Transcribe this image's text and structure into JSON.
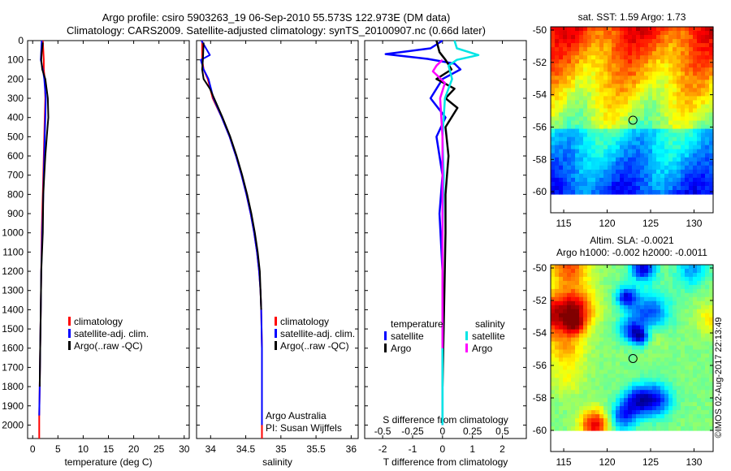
{
  "title_line1": "Argo profile: csiro 5903263_19 06-Sep-2010 55.573S 122.973E (DM data)",
  "title_line2": "Climatology: CARS2009. Satellite-adjusted climatology: synTS_20100907.nc (0.66d later)",
  "colors": {
    "climatology": "#ff0000",
    "satellite": "#0000ff",
    "argo": "#000000",
    "sal_satellite": "#00e5e5",
    "sal_argo": "#ff00ff"
  },
  "depth_ticks": [
    0,
    100,
    200,
    300,
    400,
    500,
    600,
    700,
    800,
    900,
    1000,
    1100,
    1200,
    1300,
    1400,
    1500,
    1600,
    1700,
    1800,
    1900,
    2000
  ],
  "chart_data": [
    {
      "type": "line",
      "xlabel": "temperature (deg C)",
      "xlim": [
        -1,
        31
      ],
      "ylim": [
        2070,
        0
      ],
      "xticks": [
        0,
        5,
        10,
        15,
        20,
        25,
        30
      ],
      "legend_placement": "lower-left",
      "legend": [
        "climatology",
        "satellite-adj. clim.",
        "Argo(..raw -QC)"
      ],
      "series": [
        {
          "name": "climatology",
          "color": "#ff0000",
          "x": [
            2.0,
            2.1,
            2.2,
            2.2,
            2.4,
            2.5,
            2.4,
            2.3,
            2.2,
            2.1,
            2.0,
            1.9,
            1.8,
            1.7,
            1.6,
            1.5,
            1.4,
            1.3,
            1.3
          ],
          "y": [
            0,
            50,
            100,
            150,
            200,
            300,
            400,
            500,
            600,
            700,
            800,
            900,
            1000,
            1200,
            1400,
            1600,
            1800,
            1950,
            2070
          ]
        },
        {
          "name": "satellite-adj. clim.",
          "color": "#0000ff",
          "x": [
            1.8,
            1.7,
            1.6,
            2.0,
            2.3,
            2.6,
            2.5,
            2.4,
            2.3,
            2.2,
            2.1,
            2.0,
            1.9,
            1.7,
            1.6,
            1.5,
            1.4,
            1.3
          ],
          "y": [
            0,
            50,
            100,
            150,
            200,
            300,
            400,
            500,
            600,
            700,
            800,
            900,
            1000,
            1200,
            1400,
            1600,
            1800,
            1950
          ]
        },
        {
          "name": "Argo(..raw -QC)",
          "color": "#000000",
          "x": [
            2.0,
            1.8,
            1.7,
            1.9,
            2.5,
            3.0,
            3.1,
            2.8,
            2.5,
            2.3,
            2.1,
            2.0,
            1.7,
            1.6,
            1.5,
            1.4
          ],
          "y": [
            10,
            60,
            100,
            150,
            200,
            300,
            400,
            500,
            600,
            700,
            800,
            1000,
            1200,
            1400,
            1600,
            1800
          ]
        }
      ]
    },
    {
      "type": "line",
      "xlabel": "salinity",
      "xlim": [
        33.8,
        36.1
      ],
      "ylim": [
        2070,
        0
      ],
      "xticks": [
        34,
        34.5,
        35,
        35.5,
        36
      ],
      "legend_placement": "lower-right",
      "legend": [
        "climatology",
        "satellite-adj. clim.",
        "Argo(..raw -QC)"
      ],
      "annotation": [
        "Argo Australia",
        "PI: Susan Wijffels"
      ],
      "series": [
        {
          "name": "climatology",
          "color": "#ff0000",
          "x": [
            33.88,
            33.88,
            33.9,
            33.96,
            34.03,
            34.16,
            34.27,
            34.36,
            34.44,
            34.51,
            34.57,
            34.62,
            34.66,
            34.69,
            34.71,
            34.72,
            34.73,
            34.73
          ],
          "y": [
            0,
            100,
            150,
            200,
            300,
            400,
            500,
            600,
            700,
            800,
            900,
            1000,
            1100,
            1200,
            1300,
            1400,
            1600,
            2070
          ]
        },
        {
          "name": "satellite-adj. clim.",
          "color": "#0000ff",
          "x": [
            33.87,
            33.99,
            33.86,
            33.9,
            33.97,
            34.04,
            34.16,
            34.27,
            34.36,
            34.44,
            34.51,
            34.57,
            34.62,
            34.66,
            34.69,
            34.71,
            34.72,
            34.73,
            34.73
          ],
          "y": [
            0,
            75,
            100,
            150,
            200,
            300,
            400,
            500,
            600,
            700,
            800,
            900,
            1000,
            1100,
            1200,
            1300,
            1400,
            1600,
            2000
          ]
        },
        {
          "name": "Argo(..raw -QC)",
          "color": "#000000",
          "x": [
            33.9,
            33.89,
            33.88,
            33.9,
            33.99,
            34.05,
            34.17,
            34.28,
            34.37,
            34.45,
            34.52,
            34.58,
            34.63,
            34.67,
            34.7,
            34.72
          ],
          "y": [
            10,
            100,
            150,
            200,
            250,
            300,
            400,
            500,
            600,
            700,
            800,
            900,
            1000,
            1100,
            1200,
            1400
          ]
        }
      ]
    },
    {
      "type": "line",
      "xlabel": "T difference from climatology",
      "x2label": "S difference from climatology",
      "xlim": [
        -2.6,
        2.8
      ],
      "x2lim": [
        -0.65,
        0.7
      ],
      "ylim": [
        2070,
        0
      ],
      "xticks": [
        -2,
        -1,
        0,
        1,
        2
      ],
      "x2ticks": [
        -0.5,
        -0.25,
        0,
        0.25,
        0.5
      ],
      "legend_placement": "middle",
      "legend_titles": [
        "temperature",
        "salinity"
      ],
      "series": [
        {
          "name": "satellite",
          "group": "temperature",
          "color": "#0000ff",
          "axis": "T",
          "x": [
            0,
            -0.4,
            -1.9,
            -0.5,
            0.4,
            0.6,
            0.0,
            -0.4,
            0.1,
            -0.2,
            -0.1,
            0.0,
            -0.1,
            0.0,
            0.0,
            0.0
          ],
          "y": [
            0,
            40,
            70,
            95,
            120,
            150,
            200,
            300,
            400,
            500,
            600,
            700,
            900,
            1200,
            1600,
            2000
          ]
        },
        {
          "name": "Argo",
          "group": "temperature",
          "color": "#000000",
          "axis": "T",
          "x": [
            -0.2,
            -0.1,
            0.1,
            0.3,
            -0.2,
            0.4,
            0.1,
            0.5,
            0.1,
            0.2,
            0.1,
            0.1,
            0.05,
            0.0
          ],
          "y": [
            0,
            60,
            100,
            150,
            200,
            250,
            300,
            350,
            450,
            600,
            800,
            1000,
            1400,
            1800
          ]
        },
        {
          "name": "satellite",
          "group": "salinity",
          "color": "#00e5e5",
          "axis": "S",
          "x": [
            0.1,
            0.12,
            0.3,
            0.12,
            0.05,
            0.08,
            0.02,
            0.0,
            0.01,
            0.0,
            0.0,
            0.0
          ],
          "y": [
            0,
            40,
            75,
            100,
            130,
            200,
            300,
            500,
            700,
            1000,
            1500,
            2000
          ]
        },
        {
          "name": "Argo",
          "group": "salinity",
          "color": "#ff00ff",
          "axis": "S",
          "x": [
            0.0,
            -0.05,
            -0.08,
            -0.03,
            0.02,
            -0.02,
            0.0,
            0.0,
            0.0,
            0.0
          ],
          "y": [
            100,
            130,
            160,
            190,
            220,
            300,
            500,
            800,
            1200,
            1600
          ]
        }
      ]
    },
    {
      "type": "heatmap",
      "title": "sat. SST: 1.59 Argo: 1.73",
      "xlim": [
        113.5,
        132.2
      ],
      "ylim": [
        -61.3,
        -49.8
      ],
      "xticks": [
        115,
        120,
        125,
        130
      ],
      "yticks": [
        -50,
        -52,
        -54,
        -56,
        -58,
        -60
      ],
      "profile_marker": {
        "lon": 122.973,
        "lat": -55.573
      }
    },
    {
      "type": "heatmap",
      "title_line1": "Altim. SLA: -0.0021",
      "title_line2": "Argo h1000: -0.002 h2000: -0.0011",
      "xlim": [
        113.5,
        132.2
      ],
      "ylim": [
        -61.3,
        -49.8
      ],
      "xticks": [
        115,
        120,
        125,
        130
      ],
      "yticks": [
        -50,
        -52,
        -54,
        -56,
        -58,
        -60
      ],
      "profile_marker": {
        "lon": 122.973,
        "lat": -55.573
      }
    }
  ],
  "side_stamp": "©IMOS 02-Aug-2017 22:13:49"
}
